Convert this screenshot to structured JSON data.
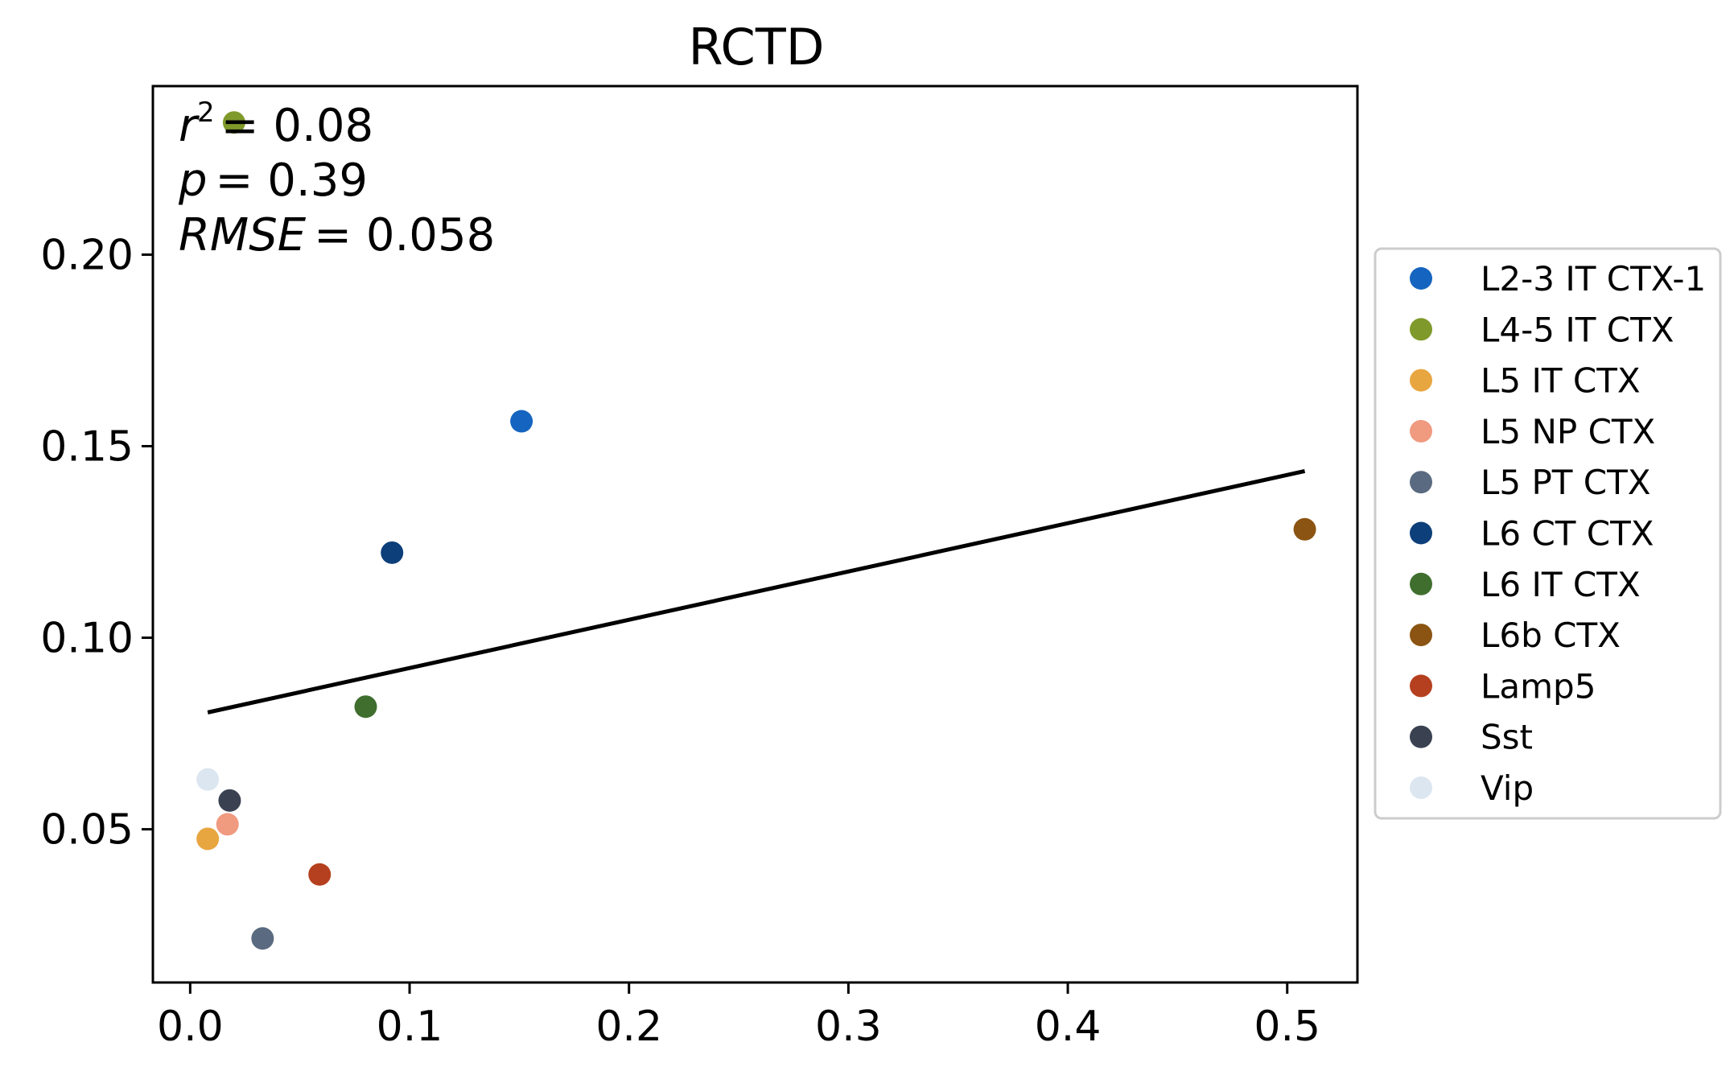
{
  "chart_data": {
    "type": "scatter",
    "title": "RCTD",
    "xlabel": "",
    "ylabel": "",
    "xlim": [
      -0.017,
      0.532
    ],
    "ylim": [
      0.01,
      0.244
    ],
    "x_ticks": [
      0.0,
      0.1,
      0.2,
      0.3,
      0.4,
      0.5
    ],
    "x_tick_labels": [
      "0.0",
      "0.1",
      "0.2",
      "0.3",
      "0.4",
      "0.5"
    ],
    "y_ticks": [
      0.05,
      0.1,
      0.15,
      0.2
    ],
    "y_tick_labels": [
      "0.05",
      "0.10",
      "0.15",
      "0.20"
    ],
    "grid": false,
    "legend_position": "right",
    "stats": {
      "r2_var": "r",
      "r2_sup": "2",
      "r2_value": "= 0.08",
      "p_var": "p",
      "p_value": "= 0.39",
      "rmse_var": "RMSE",
      "rmse_value": "= 0.058"
    },
    "fit_line": {
      "x": [
        0.008,
        0.508
      ],
      "y": [
        0.0805,
        0.1435
      ],
      "color": "#000000"
    },
    "series": [
      {
        "name": "L2-3 IT CTX-1",
        "color": "#1565c0",
        "x": [
          0.151
        ],
        "y": [
          0.1565
        ]
      },
      {
        "name": "L4-5 IT CTX",
        "color": "#7f9a2a",
        "x": [
          0.02
        ],
        "y": [
          0.2345
        ]
      },
      {
        "name": "L5 IT CTX",
        "color": "#e8a640",
        "x": [
          0.008
        ],
        "y": [
          0.0475
        ]
      },
      {
        "name": "L5 NP CTX",
        "color": "#f09a80",
        "x": [
          0.017
        ],
        "y": [
          0.0513
        ]
      },
      {
        "name": "L5 PT CTX",
        "color": "#5a6a80",
        "x": [
          0.033
        ],
        "y": [
          0.0215
        ]
      },
      {
        "name": "L6 CT CTX",
        "color": "#0d3f7a",
        "x": [
          0.092
        ],
        "y": [
          0.1222
        ]
      },
      {
        "name": "L6 IT CTX",
        "color": "#3f6e2e",
        "x": [
          0.08
        ],
        "y": [
          0.082
        ]
      },
      {
        "name": "L6b CTX",
        "color": "#8b5412",
        "x": [
          0.508
        ],
        "y": [
          0.1283
        ]
      },
      {
        "name": "Lamp5",
        "color": "#b5401f",
        "x": [
          0.059
        ],
        "y": [
          0.0382
        ]
      },
      {
        "name": "Sst",
        "color": "#3a4252",
        "x": [
          0.018
        ],
        "y": [
          0.0575
        ]
      },
      {
        "name": "Vip",
        "color": "#dbe6f0",
        "x": [
          0.008
        ],
        "y": [
          0.063
        ]
      }
    ]
  }
}
